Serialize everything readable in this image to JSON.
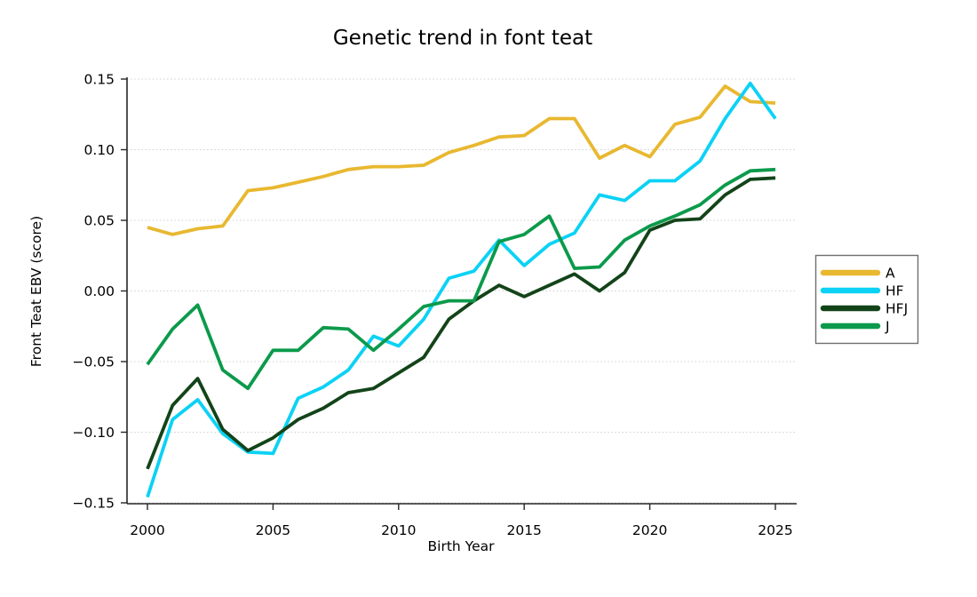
{
  "title": "Genetic trend in font teat",
  "chart_data": {
    "type": "line",
    "title": "Genetic trend in font teat",
    "xlabel": "Birth Year",
    "ylabel": "Front Teat EBV (score)",
    "xlim": [
      2000,
      2025
    ],
    "ylim": [
      -0.15,
      0.15
    ],
    "grid": "horizontal-dotted",
    "legend_position": "right-outside",
    "x": [
      2000,
      2001,
      2002,
      2003,
      2004,
      2005,
      2006,
      2007,
      2008,
      2009,
      2010,
      2011,
      2012,
      2013,
      2014,
      2015,
      2016,
      2017,
      2018,
      2019,
      2020,
      2021,
      2022,
      2023,
      2024,
      2025
    ],
    "x_tick_values": [
      2000,
      2005,
      2010,
      2015,
      2020,
      2025
    ],
    "x_tick_labels": [
      "2000",
      "2005",
      "2010",
      "2015",
      "2020",
      "2025"
    ],
    "y_tick_values": [
      0.15,
      0.1,
      0.05,
      0.0,
      -0.05,
      -0.1,
      -0.15
    ],
    "y_tick_labels": [
      "0.15",
      "0.10",
      "0.05",
      "0.00",
      "−0.05",
      "−0.10",
      "−0.15"
    ],
    "series": [
      {
        "name": "A",
        "color": "#e8b830",
        "values": [
          0.045,
          0.04,
          0.044,
          0.046,
          0.071,
          0.073,
          0.077,
          0.081,
          0.086,
          0.088,
          0.088,
          0.089,
          0.098,
          0.103,
          0.109,
          0.11,
          0.122,
          0.122,
          0.094,
          0.103,
          0.095,
          0.118,
          0.123,
          0.145,
          0.134,
          0.133
        ]
      },
      {
        "name": "HF",
        "color": "#0bd2f5",
        "values": [
          -0.146,
          -0.091,
          -0.077,
          -0.101,
          -0.114,
          -0.115,
          -0.076,
          -0.068,
          -0.056,
          -0.032,
          -0.039,
          -0.02,
          0.009,
          0.014,
          0.036,
          0.018,
          0.033,
          0.041,
          0.068,
          0.064,
          0.078,
          0.078,
          0.092,
          0.122,
          0.147,
          0.122
        ]
      },
      {
        "name": "HFJ",
        "color": "#134419",
        "values": [
          -0.126,
          -0.081,
          -0.062,
          -0.098,
          -0.113,
          -0.104,
          -0.091,
          -0.083,
          -0.072,
          -0.069,
          -0.058,
          -0.047,
          -0.02,
          -0.007,
          0.004,
          -0.004,
          0.004,
          0.012,
          0.0,
          0.013,
          0.043,
          0.05,
          0.051,
          0.068,
          0.079,
          0.08
        ]
      },
      {
        "name": "J",
        "color": "#0b9a4b",
        "values": [
          -0.052,
          -0.027,
          -0.01,
          -0.056,
          -0.069,
          -0.042,
          -0.042,
          -0.026,
          -0.027,
          -0.042,
          -0.027,
          -0.011,
          -0.007,
          -0.007,
          0.035,
          0.04,
          0.053,
          0.016,
          0.017,
          0.036,
          0.046,
          0.053,
          0.061,
          0.075,
          0.085,
          0.086
        ]
      }
    ]
  }
}
